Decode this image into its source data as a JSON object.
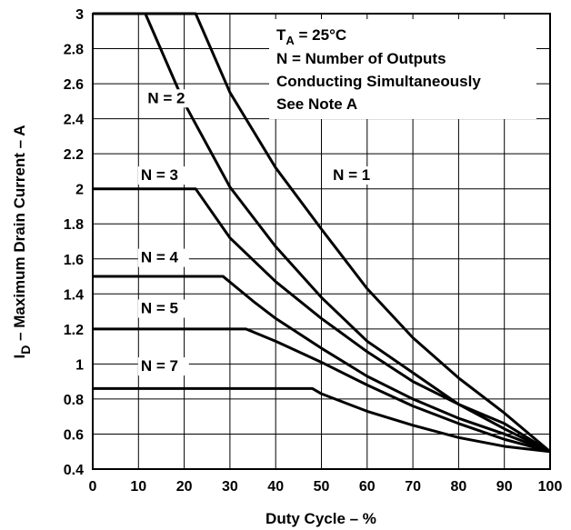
{
  "chart_data": {
    "type": "line",
    "xlabel": "Duty Cycle – %",
    "ylabel": "I",
    "ylabel_sub": "D",
    "ylabel_rest": " – Maximum Drain Current – A",
    "xlim": [
      0,
      100
    ],
    "ylim": [
      0.4,
      3
    ],
    "x_ticks": [
      0,
      10,
      20,
      30,
      40,
      50,
      60,
      70,
      80,
      90,
      100
    ],
    "y_ticks": [
      0.4,
      0.6,
      0.8,
      1,
      1.2,
      1.4,
      1.6,
      1.8,
      2,
      2.2,
      2.4,
      2.6,
      2.8,
      3
    ],
    "grid": true,
    "annotation": {
      "line1_main": "T",
      "line1_sub": "A",
      "line1_rest": " = 25°C",
      "line2": "N = Number of Outputs",
      "line3": "Conducting Simultaneously",
      "line4": "See Note A"
    },
    "series": [
      {
        "name": "N = 1",
        "x": [
          0,
          22.5,
          30,
          40,
          50,
          60,
          70,
          80,
          90,
          100
        ],
        "y": [
          3,
          3,
          2.55,
          2.12,
          1.77,
          1.43,
          1.15,
          0.92,
          0.72,
          0.5
        ]
      },
      {
        "name": "N = 2",
        "x": [
          0,
          11.5,
          20,
          30,
          40,
          50,
          60,
          70,
          80,
          90,
          100
        ],
        "y": [
          3,
          3,
          2.49,
          2.01,
          1.67,
          1.38,
          1.13,
          0.95,
          0.77,
          0.63,
          0.5
        ]
      },
      {
        "name": "N = 3",
        "x": [
          0,
          22.5,
          30,
          40,
          50,
          60,
          70,
          80,
          90,
          100
        ],
        "y": [
          2,
          2,
          1.72,
          1.47,
          1.26,
          1.07,
          0.9,
          0.77,
          0.66,
          0.5
        ]
      },
      {
        "name": "N = 4",
        "x": [
          0,
          28.5,
          35,
          40,
          50,
          60,
          70,
          80,
          90,
          100
        ],
        "y": [
          1.5,
          1.5,
          1.36,
          1.26,
          1.09,
          0.93,
          0.8,
          0.69,
          0.6,
          0.5
        ]
      },
      {
        "name": "N = 5",
        "x": [
          0,
          33.5,
          40,
          50,
          60,
          70,
          80,
          90,
          100
        ],
        "y": [
          1.2,
          1.2,
          1.13,
          1.01,
          0.88,
          0.76,
          0.66,
          0.57,
          0.5
        ]
      },
      {
        "name": "N = 7",
        "x": [
          0,
          48,
          50,
          60,
          70,
          80,
          90,
          100
        ],
        "y": [
          0.86,
          0.86,
          0.83,
          0.73,
          0.65,
          0.58,
          0.53,
          0.5
        ]
      }
    ],
    "curve_labels": [
      {
        "text": "N = 1",
        "x": 52.5,
        "y": 2.05
      },
      {
        "text": "N = 2",
        "x": 12,
        "y": 2.49
      },
      {
        "text": "N = 3",
        "x": 10.5,
        "y": 2.05
      },
      {
        "text": "N = 4",
        "x": 10.5,
        "y": 1.58
      },
      {
        "text": "N = 5",
        "x": 10.5,
        "y": 1.29
      },
      {
        "text": "N = 7",
        "x": 10.5,
        "y": 0.96
      }
    ]
  }
}
